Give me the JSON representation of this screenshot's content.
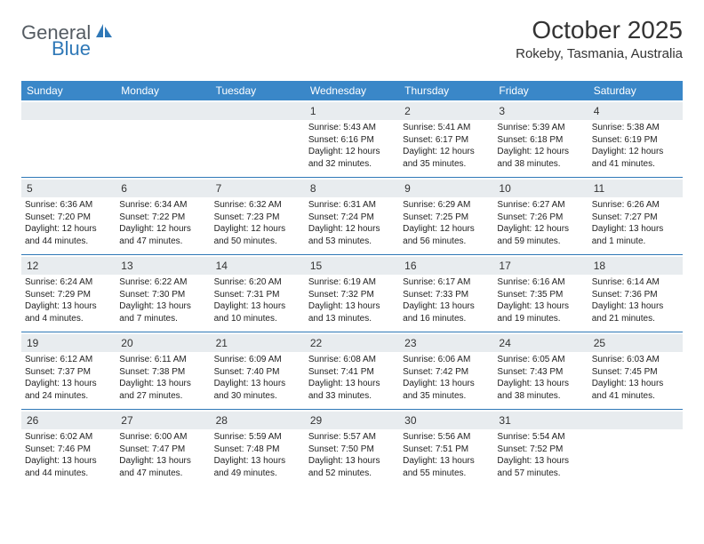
{
  "logo": {
    "part1": "General",
    "part2": "Blue"
  },
  "title": "October 2025",
  "subtitle": "Rokeby, Tasmania, Australia",
  "colors": {
    "header_bg": "#3a87c8",
    "accent": "#2f78b7",
    "dayband": "#e8ecef",
    "text": "#222222",
    "page_bg": "#ffffff"
  },
  "weekdays": [
    "Sunday",
    "Monday",
    "Tuesday",
    "Wednesday",
    "Thursday",
    "Friday",
    "Saturday"
  ],
  "weeks": [
    [
      null,
      null,
      null,
      {
        "n": "1",
        "sr": "Sunrise: 5:43 AM",
        "ss": "Sunset: 6:16 PM",
        "d1": "Daylight: 12 hours",
        "d2": "and 32 minutes."
      },
      {
        "n": "2",
        "sr": "Sunrise: 5:41 AM",
        "ss": "Sunset: 6:17 PM",
        "d1": "Daylight: 12 hours",
        "d2": "and 35 minutes."
      },
      {
        "n": "3",
        "sr": "Sunrise: 5:39 AM",
        "ss": "Sunset: 6:18 PM",
        "d1": "Daylight: 12 hours",
        "d2": "and 38 minutes."
      },
      {
        "n": "4",
        "sr": "Sunrise: 5:38 AM",
        "ss": "Sunset: 6:19 PM",
        "d1": "Daylight: 12 hours",
        "d2": "and 41 minutes."
      }
    ],
    [
      {
        "n": "5",
        "sr": "Sunrise: 6:36 AM",
        "ss": "Sunset: 7:20 PM",
        "d1": "Daylight: 12 hours",
        "d2": "and 44 minutes."
      },
      {
        "n": "6",
        "sr": "Sunrise: 6:34 AM",
        "ss": "Sunset: 7:22 PM",
        "d1": "Daylight: 12 hours",
        "d2": "and 47 minutes."
      },
      {
        "n": "7",
        "sr": "Sunrise: 6:32 AM",
        "ss": "Sunset: 7:23 PM",
        "d1": "Daylight: 12 hours",
        "d2": "and 50 minutes."
      },
      {
        "n": "8",
        "sr": "Sunrise: 6:31 AM",
        "ss": "Sunset: 7:24 PM",
        "d1": "Daylight: 12 hours",
        "d2": "and 53 minutes."
      },
      {
        "n": "9",
        "sr": "Sunrise: 6:29 AM",
        "ss": "Sunset: 7:25 PM",
        "d1": "Daylight: 12 hours",
        "d2": "and 56 minutes."
      },
      {
        "n": "10",
        "sr": "Sunrise: 6:27 AM",
        "ss": "Sunset: 7:26 PM",
        "d1": "Daylight: 12 hours",
        "d2": "and 59 minutes."
      },
      {
        "n": "11",
        "sr": "Sunrise: 6:26 AM",
        "ss": "Sunset: 7:27 PM",
        "d1": "Daylight: 13 hours",
        "d2": "and 1 minute."
      }
    ],
    [
      {
        "n": "12",
        "sr": "Sunrise: 6:24 AM",
        "ss": "Sunset: 7:29 PM",
        "d1": "Daylight: 13 hours",
        "d2": "and 4 minutes."
      },
      {
        "n": "13",
        "sr": "Sunrise: 6:22 AM",
        "ss": "Sunset: 7:30 PM",
        "d1": "Daylight: 13 hours",
        "d2": "and 7 minutes."
      },
      {
        "n": "14",
        "sr": "Sunrise: 6:20 AM",
        "ss": "Sunset: 7:31 PM",
        "d1": "Daylight: 13 hours",
        "d2": "and 10 minutes."
      },
      {
        "n": "15",
        "sr": "Sunrise: 6:19 AM",
        "ss": "Sunset: 7:32 PM",
        "d1": "Daylight: 13 hours",
        "d2": "and 13 minutes."
      },
      {
        "n": "16",
        "sr": "Sunrise: 6:17 AM",
        "ss": "Sunset: 7:33 PM",
        "d1": "Daylight: 13 hours",
        "d2": "and 16 minutes."
      },
      {
        "n": "17",
        "sr": "Sunrise: 6:16 AM",
        "ss": "Sunset: 7:35 PM",
        "d1": "Daylight: 13 hours",
        "d2": "and 19 minutes."
      },
      {
        "n": "18",
        "sr": "Sunrise: 6:14 AM",
        "ss": "Sunset: 7:36 PM",
        "d1": "Daylight: 13 hours",
        "d2": "and 21 minutes."
      }
    ],
    [
      {
        "n": "19",
        "sr": "Sunrise: 6:12 AM",
        "ss": "Sunset: 7:37 PM",
        "d1": "Daylight: 13 hours",
        "d2": "and 24 minutes."
      },
      {
        "n": "20",
        "sr": "Sunrise: 6:11 AM",
        "ss": "Sunset: 7:38 PM",
        "d1": "Daylight: 13 hours",
        "d2": "and 27 minutes."
      },
      {
        "n": "21",
        "sr": "Sunrise: 6:09 AM",
        "ss": "Sunset: 7:40 PM",
        "d1": "Daylight: 13 hours",
        "d2": "and 30 minutes."
      },
      {
        "n": "22",
        "sr": "Sunrise: 6:08 AM",
        "ss": "Sunset: 7:41 PM",
        "d1": "Daylight: 13 hours",
        "d2": "and 33 minutes."
      },
      {
        "n": "23",
        "sr": "Sunrise: 6:06 AM",
        "ss": "Sunset: 7:42 PM",
        "d1": "Daylight: 13 hours",
        "d2": "and 35 minutes."
      },
      {
        "n": "24",
        "sr": "Sunrise: 6:05 AM",
        "ss": "Sunset: 7:43 PM",
        "d1": "Daylight: 13 hours",
        "d2": "and 38 minutes."
      },
      {
        "n": "25",
        "sr": "Sunrise: 6:03 AM",
        "ss": "Sunset: 7:45 PM",
        "d1": "Daylight: 13 hours",
        "d2": "and 41 minutes."
      }
    ],
    [
      {
        "n": "26",
        "sr": "Sunrise: 6:02 AM",
        "ss": "Sunset: 7:46 PM",
        "d1": "Daylight: 13 hours",
        "d2": "and 44 minutes."
      },
      {
        "n": "27",
        "sr": "Sunrise: 6:00 AM",
        "ss": "Sunset: 7:47 PM",
        "d1": "Daylight: 13 hours",
        "d2": "and 47 minutes."
      },
      {
        "n": "28",
        "sr": "Sunrise: 5:59 AM",
        "ss": "Sunset: 7:48 PM",
        "d1": "Daylight: 13 hours",
        "d2": "and 49 minutes."
      },
      {
        "n": "29",
        "sr": "Sunrise: 5:57 AM",
        "ss": "Sunset: 7:50 PM",
        "d1": "Daylight: 13 hours",
        "d2": "and 52 minutes."
      },
      {
        "n": "30",
        "sr": "Sunrise: 5:56 AM",
        "ss": "Sunset: 7:51 PM",
        "d1": "Daylight: 13 hours",
        "d2": "and 55 minutes."
      },
      {
        "n": "31",
        "sr": "Sunrise: 5:54 AM",
        "ss": "Sunset: 7:52 PM",
        "d1": "Daylight: 13 hours",
        "d2": "and 57 minutes."
      },
      null
    ]
  ]
}
